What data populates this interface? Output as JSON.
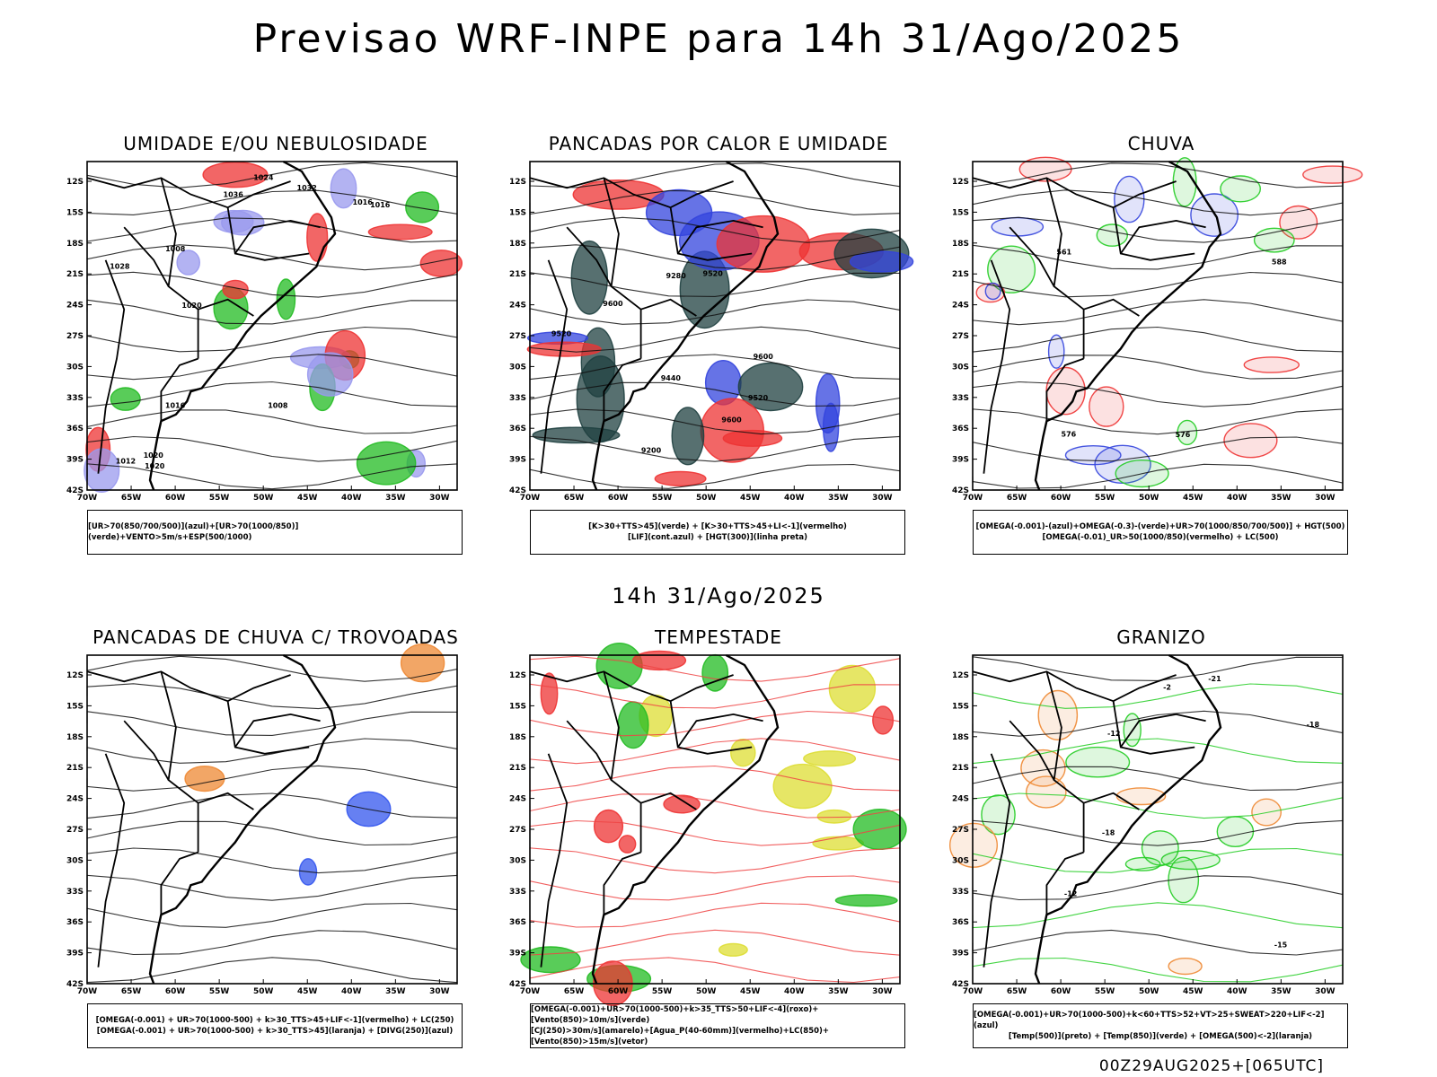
{
  "header": {
    "title": "Previsao WRF-INPE  para 14h 31/Ago/2025"
  },
  "subtitle": "14h 31/Ago/2025",
  "footer": "00Z29AUG2025+[065UTC]",
  "axes": {
    "lat_labels": [
      "12S",
      "15S",
      "18S",
      "21S",
      "24S",
      "27S",
      "30S",
      "33S",
      "36S",
      "39S",
      "42S"
    ],
    "lon_labels": [
      "70W",
      "65W",
      "60W",
      "55W",
      "50W",
      "45W",
      "40W",
      "35W",
      "30W"
    ]
  },
  "panels": [
    {
      "id": "umidade",
      "title": "UMIDADE E/OU NEBULOSIDADE",
      "legend": [
        "[UR>70(850/700/500)](azul)+[UR>70(1000/850)](verde)+VENTO>5m/s+ESP(500/1000)"
      ],
      "colors": {
        "a": "#9999ee",
        "b": "#22bb22",
        "c": "#ee3333"
      },
      "labels": [
        "1016",
        "1020",
        "1012",
        "1008",
        "1016",
        "1024",
        "1020",
        "1028",
        "1008",
        "1016",
        "1020",
        "1032",
        "1036"
      ]
    },
    {
      "id": "pancadas_calor",
      "title": "PANCADAS POR CALOR E UMIDADE",
      "legend": [
        "[K>30+TTS>45](verde) + [K>30+TTS>45+LI<-1](vermelho)",
        "[LIF](cont.azul) + [HGT(300)](linha preta)"
      ],
      "colors": {
        "a": "#1f4040",
        "b": "#ee3333",
        "c": "#3344dd"
      },
      "labels": [
        "9520",
        "9600",
        "9600",
        "9600",
        "9440",
        "9520",
        "9280",
        "9200",
        "9520"
      ]
    },
    {
      "id": "chuva",
      "title": "CHUVA",
      "legend": [
        "[OMEGA(-0.001)-(azul)+OMEGA(-0.3)-(verde)+UR>70(1000/850/700/500)] + HGT(500)",
        "[OMEGA(-0.01)_UR>50(1000/850)(vermelho) + LC(500)"
      ],
      "colors": {
        "a": "#ee3333",
        "b": "#22cc22",
        "c": "#3344dd"
      },
      "labels": [
        "588",
        "576",
        "561",
        "576"
      ]
    },
    {
      "id": "pancadas_trovoadas",
      "title": "PANCADAS DE CHUVA C/ TROVOADAS",
      "legend": [
        "[OMEGA(-0.001) + UR>70(1000-500) + k>30_TTS>45+LIF<-1](vermelho) + LC(250)",
        "[OMEGA(-0.001) + UR>70(1000-500) + k>30_TTS>45](laranja) + [DIVG(250)](azul)"
      ],
      "colors": {
        "a": "#3355ee",
        "b": "#ee8833",
        "c": "#000000"
      },
      "labels": []
    },
    {
      "id": "tempestade",
      "title": "TEMPESTADE",
      "legend": [
        "[OMEGA(-0.001)+UR>70(1000-500)+k>35_TTS>50+LIF<-4](roxo)+[Vento(850)>10m/s](verde)",
        "[CJ(250)>30m/s](amarelo)+[Agua_P(40-60mm)](vermelho)+LC(850)+[Vento(850)>15m/s](vetor)"
      ],
      "colors": {
        "a": "#dddd33",
        "b": "#22bb22",
        "c": "#ee3333"
      },
      "labels": []
    },
    {
      "id": "granizo",
      "title": "GRANIZO",
      "legend": [
        "[OMEGA(-0.001)+UR>70(1000-500)+k<60+TTS>52+VT>25+SWEAT>220+LIF<-2](azul)",
        "[Temp(500)](preto) + [Temp(850)](verde) + [OMEGA(500)<-2](laranja)"
      ],
      "colors": {
        "a": "#22cc22",
        "b": "#ee8833",
        "c": "#000000"
      },
      "labels": [
        "-18",
        "-12",
        "-18",
        "-21",
        "-2",
        "-12",
        "-15"
      ]
    }
  ]
}
